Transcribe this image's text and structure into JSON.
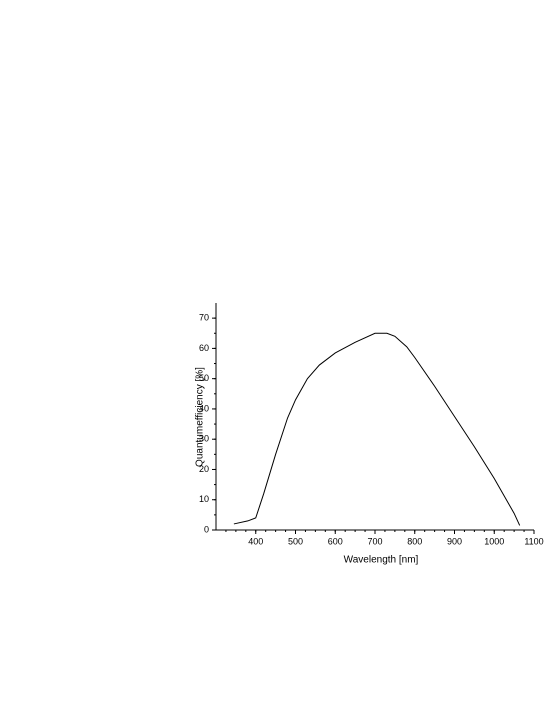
{
  "chart_data": {
    "type": "line",
    "x_label": "Wavelength [nm]",
    "y_label": "Quantumefficiency [%]",
    "x": [
      345,
      380,
      400,
      420,
      450,
      480,
      500,
      530,
      560,
      600,
      650,
      700,
      730,
      750,
      780,
      800,
      850,
      900,
      950,
      1000,
      1050,
      1064
    ],
    "series": [
      {
        "color": "#000000",
        "values": [
          2,
          3,
          4,
          12,
          25,
          37,
          43,
          50,
          54.5,
          58.5,
          62,
          65,
          65,
          64,
          60.5,
          57,
          47.5,
          37.5,
          27.5,
          17,
          5.5,
          1.5
        ]
      }
    ],
    "xlim": [
      300,
      1100
    ],
    "ylim": [
      0,
      75
    ],
    "xticks": [
      400,
      500,
      600,
      700,
      800,
      900,
      1000,
      1100
    ],
    "yticks": [
      0,
      10,
      20,
      30,
      40,
      50,
      60,
      70
    ]
  }
}
